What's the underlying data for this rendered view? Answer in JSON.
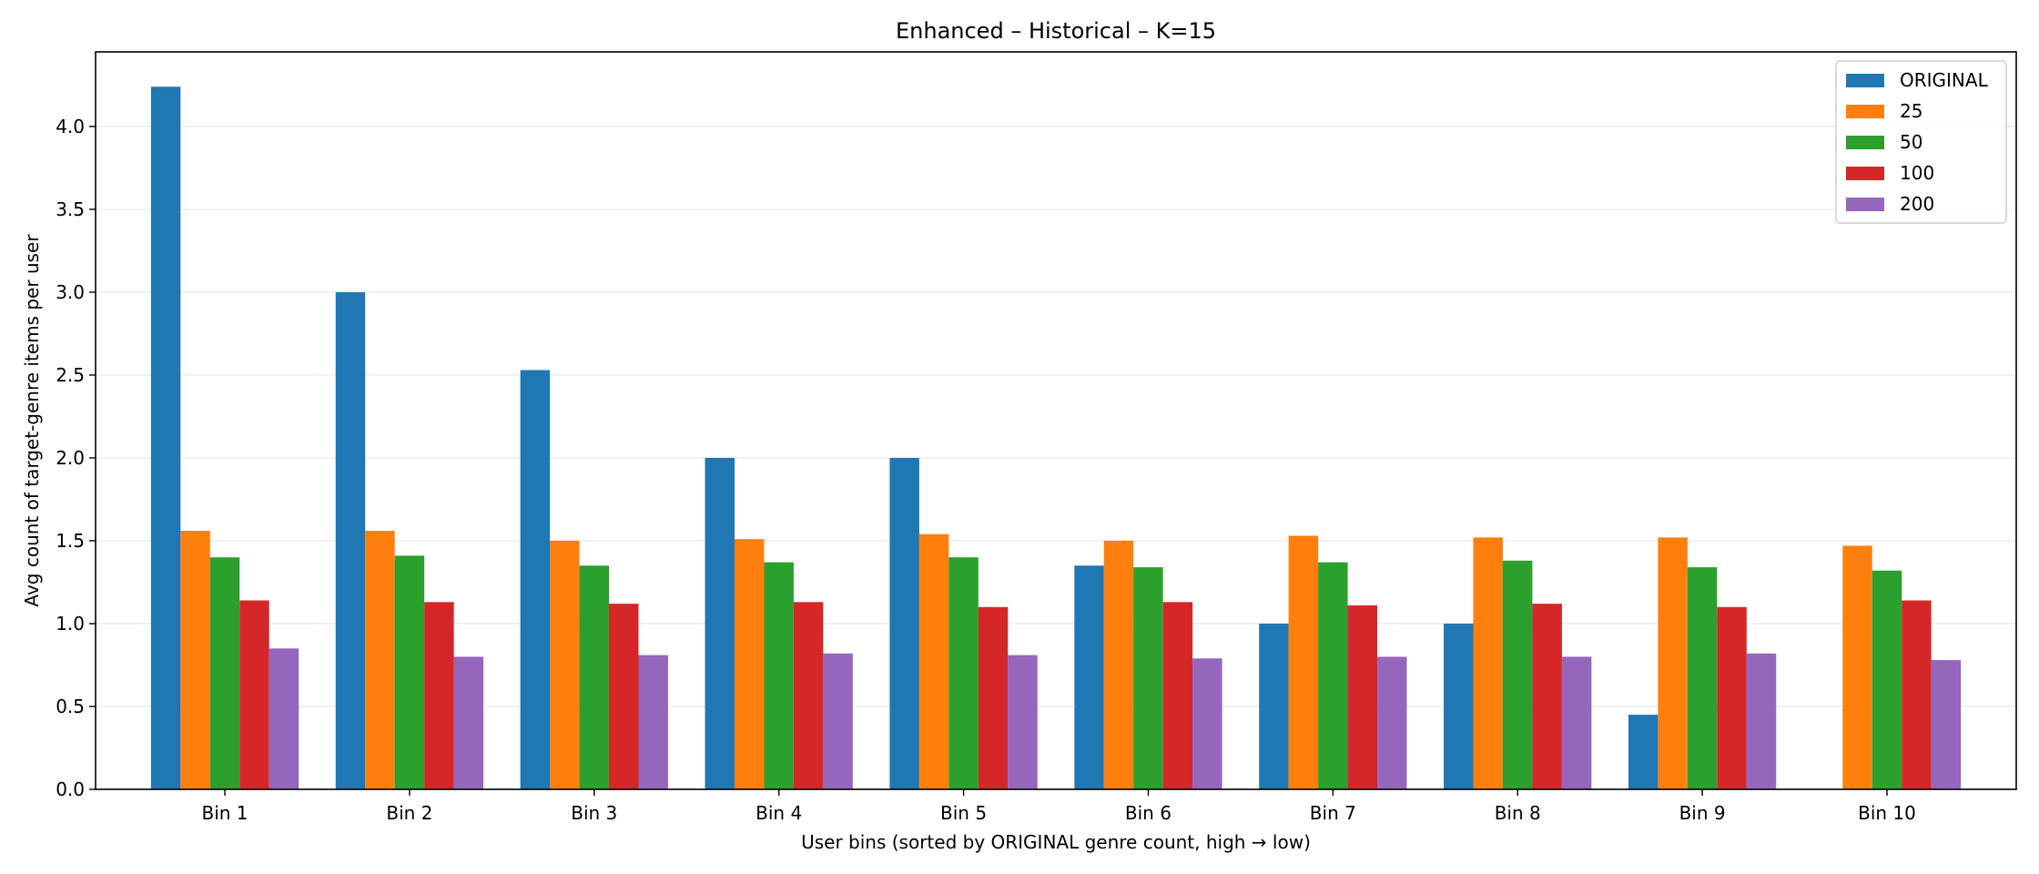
{
  "chart_data": {
    "type": "bar",
    "title": "Enhanced – Historical – K=15",
    "xlabel": "User bins (sorted by ORIGINAL genre count, high → low)",
    "ylabel": "Avg count of target-genre items per user",
    "categories": [
      "Bin 1",
      "Bin 2",
      "Bin 3",
      "Bin 4",
      "Bin 5",
      "Bin 6",
      "Bin 7",
      "Bin 8",
      "Bin 9",
      "Bin 10"
    ],
    "ylim": [
      0,
      4.45
    ],
    "yticks": [
      "0.0",
      "0.5",
      "1.0",
      "1.5",
      "2.0",
      "2.5",
      "3.0",
      "3.5",
      "4.0"
    ],
    "grid": "horizontal",
    "legend_position": "top-right",
    "series": [
      {
        "name": "ORIGINAL",
        "color": "#1f77b4",
        "values": [
          4.24,
          3.0,
          2.53,
          2.0,
          2.0,
          1.35,
          1.0,
          1.0,
          0.45,
          0.0
        ]
      },
      {
        "name": "25",
        "color": "#ff7f0e",
        "values": [
          1.56,
          1.56,
          1.5,
          1.51,
          1.54,
          1.5,
          1.53,
          1.52,
          1.52,
          1.47
        ]
      },
      {
        "name": "50",
        "color": "#2ca02c",
        "values": [
          1.4,
          1.41,
          1.35,
          1.37,
          1.4,
          1.34,
          1.37,
          1.38,
          1.34,
          1.32
        ]
      },
      {
        "name": "100",
        "color": "#d62728",
        "values": [
          1.14,
          1.13,
          1.12,
          1.13,
          1.1,
          1.13,
          1.11,
          1.12,
          1.1,
          1.14
        ]
      },
      {
        "name": "200",
        "color": "#9467bd",
        "values": [
          0.85,
          0.8,
          0.81,
          0.82,
          0.81,
          0.79,
          0.8,
          0.8,
          0.82,
          0.78
        ]
      }
    ]
  }
}
